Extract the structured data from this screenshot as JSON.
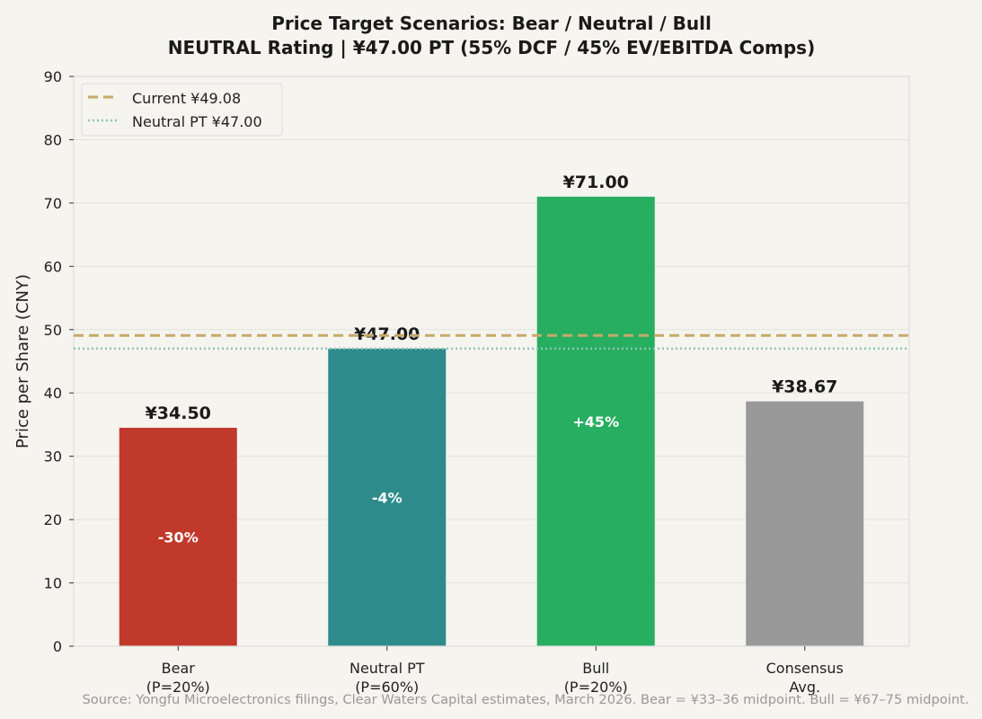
{
  "chart_data": {
    "type": "bar",
    "title": "Price Target Scenarios: Bear / Neutral / Bull",
    "subtitle": "NEUTRAL Rating | ¥47.00 PT (55% DCF / 45% EV/EBITDA Comps)",
    "xlabel": "",
    "ylabel": "Price per Share (CNY)",
    "ylim": [
      0,
      90
    ],
    "yticks": [
      0,
      10,
      20,
      30,
      40,
      50,
      60,
      70,
      80,
      90
    ],
    "grid": true,
    "categories": [
      [
        "Bear",
        "(P=20%)"
      ],
      [
        "Neutral PT",
        "(P=60%)"
      ],
      [
        "Bull",
        "(P=20%)"
      ],
      [
        "Consensus",
        "Avg."
      ]
    ],
    "values": [
      34.5,
      47.0,
      71.0,
      38.67
    ],
    "data_labels": [
      "¥34.50",
      "¥47.00",
      "¥71.00",
      "¥38.67"
    ],
    "inner_labels": [
      "-30%",
      "-4%",
      "+45%",
      ""
    ],
    "colors": [
      "#c0392b",
      "#2e8b8b",
      "#27ae60",
      "#999999"
    ],
    "reference_lines": [
      {
        "name": "Current ¥49.08",
        "value": 49.08,
        "style": "dashed",
        "color": "#c8a96a"
      },
      {
        "name": "Neutral PT ¥47.00",
        "value": 47.0,
        "style": "dotted",
        "color": "#8fc4b4"
      }
    ],
    "legend_placement": "top-left"
  },
  "source": "Source: Yongfu Microelectronics filings, Clear Waters Capital estimates, March 2026. Bear = ¥33–36 midpoint. Bull = ¥67–75 midpoint."
}
